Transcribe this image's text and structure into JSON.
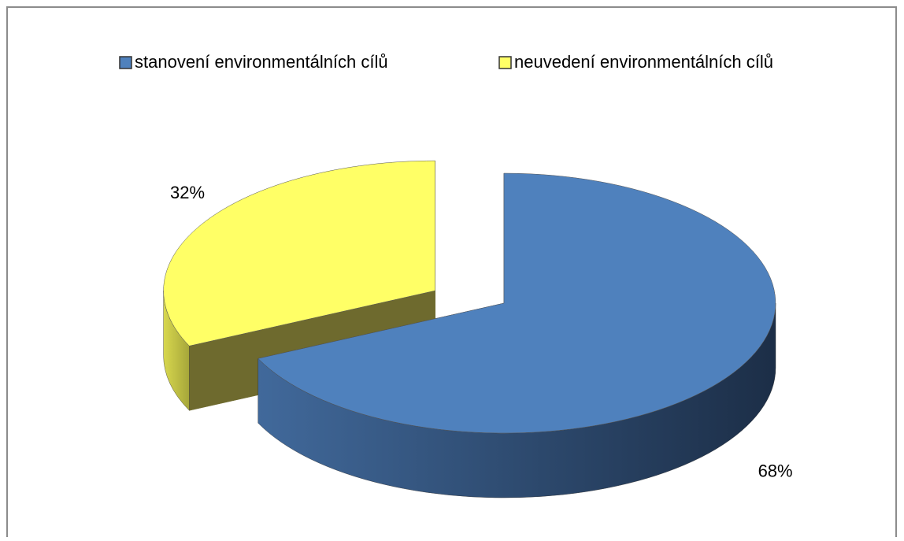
{
  "chart_data": {
    "type": "pie3d",
    "categories": [
      "stanovení environmentálních cílů",
      "neuvedení environmentálních cílů"
    ],
    "values": [
      68,
      32
    ],
    "value_labels": [
      "68%",
      "32%"
    ],
    "colors": [
      "#4f81bd",
      "#ffff66"
    ],
    "legend": "top"
  }
}
